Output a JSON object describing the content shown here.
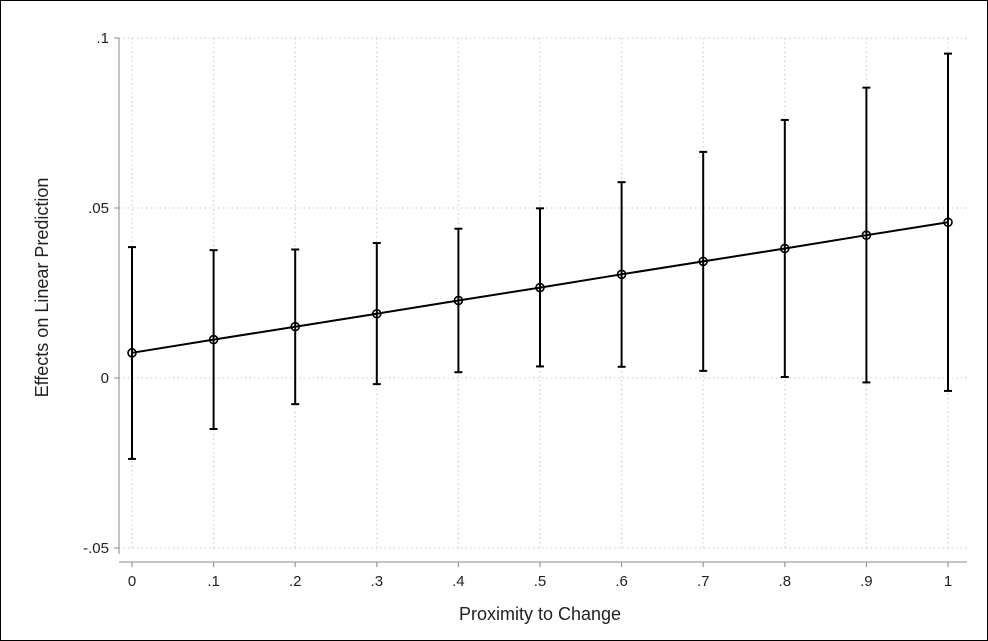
{
  "chart_data": {
    "type": "line",
    "title": "",
    "xlabel": "Proximity to Change",
    "ylabel": "Effects on Linear Prediction",
    "xlim": [
      0,
      1
    ],
    "ylim": [
      -0.05,
      0.1
    ],
    "x_ticks": [
      0,
      0.1,
      0.2,
      0.3,
      0.4,
      0.5,
      0.6,
      0.7,
      0.8,
      0.9,
      1
    ],
    "x_tick_labels": [
      "0",
      ".1",
      ".2",
      ".3",
      ".4",
      ".5",
      ".6",
      ".7",
      ".8",
      ".9",
      "1"
    ],
    "y_ticks": [
      -0.05,
      0,
      0.05,
      0.1
    ],
    "y_tick_labels": [
      "-.05",
      "0",
      ".05",
      ".1"
    ],
    "grid": true,
    "series": [
      {
        "x": [
          0,
          0.1,
          0.2,
          0.3,
          0.4,
          0.5,
          0.6,
          0.7,
          0.8,
          0.9,
          1
        ],
        "y": [
          0.0074,
          0.0113,
          0.0151,
          0.0189,
          0.0228,
          0.0266,
          0.0305,
          0.0343,
          0.0381,
          0.042,
          0.0458
        ],
        "ci_lower": [
          -0.0238,
          -0.015,
          -0.0077,
          -0.0018,
          0.0017,
          0.0034,
          0.0033,
          0.0021,
          0.0003,
          -0.0013,
          -0.0038
        ],
        "ci_upper": [
          0.0385,
          0.0376,
          0.0378,
          0.0397,
          0.0439,
          0.0499,
          0.0576,
          0.0665,
          0.0759,
          0.0854,
          0.0954
        ]
      }
    ],
    "colors": {
      "line": "#000000",
      "grid": "#c8c8c8",
      "axis": "#888888"
    }
  }
}
